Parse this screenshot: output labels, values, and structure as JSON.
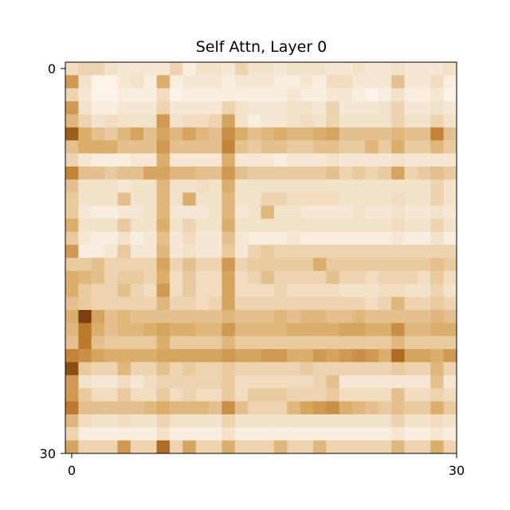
{
  "chart_data": {
    "type": "heatmap",
    "title": "Self Attn, Layer 0",
    "xlabel": "",
    "ylabel": "",
    "x_ticks": [
      "0",
      "30"
    ],
    "y_ticks": [
      "0",
      "30"
    ],
    "xlim": [
      0,
      30
    ],
    "ylim": [
      30,
      0
    ],
    "colormap": "white-to-brown",
    "color_low": "#fdf8f2",
    "color_high": "#6b3106",
    "grid": false,
    "rows": 30,
    "cols": 30,
    "values": [
      [
        0.25,
        0.3,
        0.3,
        0.2,
        0.15,
        0.15,
        0.15,
        0.15,
        0.3,
        0.1,
        0.2,
        0.2,
        0.15,
        0.3,
        0.2,
        0.2,
        0.15,
        0.2,
        0.2,
        0.2,
        0.15,
        0.15,
        0.2,
        0.15,
        0.15,
        0.2,
        0.15,
        0.15,
        0.15,
        0.2
      ],
      [
        0.6,
        0.2,
        0.05,
        0.05,
        0.15,
        0.2,
        0.1,
        0.5,
        0.1,
        0.15,
        0.15,
        0.15,
        0.1,
        0.15,
        0.15,
        0.15,
        0.1,
        0.1,
        0.15,
        0.1,
        0.25,
        0.25,
        0.15,
        0.15,
        0.15,
        0.4,
        0.15,
        0.15,
        0.25,
        0.1
      ],
      [
        0.3,
        0.15,
        0.05,
        0.05,
        0.1,
        0.1,
        0.1,
        0.25,
        0.05,
        0.1,
        0.1,
        0.1,
        0.1,
        0.1,
        0.1,
        0.1,
        0.1,
        0.15,
        0.1,
        0.1,
        0.15,
        0.15,
        0.1,
        0.05,
        0.1,
        0.2,
        0.1,
        0.1,
        0.15,
        0.05
      ],
      [
        0.6,
        0.2,
        0.1,
        0.1,
        0.15,
        0.15,
        0.15,
        0.3,
        0.15,
        0.15,
        0.15,
        0.15,
        0.3,
        0.2,
        0.15,
        0.15,
        0.15,
        0.2,
        0.2,
        0.15,
        0.3,
        0.15,
        0.15,
        0.15,
        0.2,
        0.3,
        0.15,
        0.15,
        0.2,
        0.15
      ],
      [
        0.45,
        0.3,
        0.2,
        0.25,
        0.2,
        0.2,
        0.2,
        0.6,
        0.2,
        0.25,
        0.25,
        0.3,
        0.55,
        0.2,
        0.1,
        0.15,
        0.15,
        0.2,
        0.25,
        0.2,
        0.3,
        0.2,
        0.2,
        0.2,
        0.2,
        0.3,
        0.2,
        0.2,
        0.3,
        0.2
      ],
      [
        0.85,
        0.5,
        0.4,
        0.35,
        0.45,
        0.55,
        0.4,
        0.55,
        0.45,
        0.55,
        0.45,
        0.4,
        0.65,
        0.5,
        0.4,
        0.45,
        0.5,
        0.45,
        0.45,
        0.5,
        0.55,
        0.4,
        0.4,
        0.4,
        0.4,
        0.45,
        0.4,
        0.4,
        0.7,
        0.4
      ],
      [
        0.4,
        0.5,
        0.5,
        0.5,
        0.4,
        0.4,
        0.4,
        0.6,
        0.4,
        0.4,
        0.4,
        0.4,
        0.7,
        0.4,
        0.35,
        0.4,
        0.4,
        0.35,
        0.35,
        0.4,
        0.4,
        0.35,
        0.35,
        0.45,
        0.35,
        0.5,
        0.35,
        0.35,
        0.45,
        0.35
      ],
      [
        0.3,
        0.15,
        0.1,
        0.1,
        0.1,
        0.15,
        0.15,
        0.5,
        0.15,
        0.15,
        0.15,
        0.15,
        0.5,
        0.15,
        0.15,
        0.15,
        0.1,
        0.15,
        0.15,
        0.15,
        0.2,
        0.15,
        0.15,
        0.15,
        0.15,
        0.2,
        0.15,
        0.15,
        0.15,
        0.15
      ],
      [
        0.7,
        0.4,
        0.4,
        0.35,
        0.4,
        0.4,
        0.55,
        0.55,
        0.45,
        0.45,
        0.4,
        0.4,
        0.6,
        0.4,
        0.35,
        0.35,
        0.35,
        0.35,
        0.35,
        0.35,
        0.4,
        0.3,
        0.35,
        0.3,
        0.35,
        0.55,
        0.3,
        0.35,
        0.4,
        0.35
      ],
      [
        0.4,
        0.2,
        0.2,
        0.2,
        0.15,
        0.2,
        0.2,
        0.45,
        0.2,
        0.2,
        0.25,
        0.2,
        0.5,
        0.2,
        0.2,
        0.2,
        0.2,
        0.2,
        0.2,
        0.2,
        0.2,
        0.2,
        0.2,
        0.2,
        0.2,
        0.2,
        0.2,
        0.2,
        0.3,
        0.2
      ],
      [
        0.35,
        0.2,
        0.2,
        0.2,
        0.4,
        0.2,
        0.2,
        0.45,
        0.2,
        0.5,
        0.2,
        0.2,
        0.45,
        0.2,
        0.2,
        0.3,
        0.3,
        0.25,
        0.25,
        0.25,
        0.25,
        0.2,
        0.2,
        0.2,
        0.2,
        0.25,
        0.2,
        0.2,
        0.3,
        0.2
      ],
      [
        0.35,
        0.15,
        0.1,
        0.1,
        0.15,
        0.15,
        0.2,
        0.45,
        0.15,
        0.15,
        0.15,
        0.2,
        0.45,
        0.15,
        0.2,
        0.45,
        0.2,
        0.2,
        0.15,
        0.15,
        0.15,
        0.15,
        0.2,
        0.15,
        0.15,
        0.2,
        0.15,
        0.15,
        0.2,
        0.15
      ],
      [
        0.5,
        0.2,
        0.2,
        0.2,
        0.35,
        0.2,
        0.2,
        0.5,
        0.2,
        0.3,
        0.2,
        0.2,
        0.5,
        0.2,
        0.2,
        0.2,
        0.2,
        0.2,
        0.2,
        0.2,
        0.2,
        0.2,
        0.2,
        0.2,
        0.2,
        0.25,
        0.2,
        0.2,
        0.3,
        0.2
      ],
      [
        0.35,
        0.15,
        0.1,
        0.1,
        0.2,
        0.1,
        0.15,
        0.4,
        0.15,
        0.25,
        0.15,
        0.15,
        0.4,
        0.15,
        0.1,
        0.1,
        0.1,
        0.15,
        0.1,
        0.1,
        0.1,
        0.1,
        0.1,
        0.1,
        0.1,
        0.15,
        0.1,
        0.1,
        0.2,
        0.1
      ],
      [
        0.6,
        0.1,
        0.1,
        0.15,
        0.35,
        0.15,
        0.15,
        0.45,
        0.15,
        0.2,
        0.15,
        0.15,
        0.35,
        0.15,
        0.3,
        0.35,
        0.3,
        0.3,
        0.3,
        0.3,
        0.3,
        0.3,
        0.3,
        0.3,
        0.3,
        0.3,
        0.3,
        0.3,
        0.3,
        0.3
      ],
      [
        0.35,
        0.35,
        0.4,
        0.3,
        0.3,
        0.3,
        0.3,
        0.55,
        0.3,
        0.4,
        0.3,
        0.3,
        0.6,
        0.3,
        0.35,
        0.35,
        0.35,
        0.35,
        0.35,
        0.5,
        0.35,
        0.35,
        0.35,
        0.35,
        0.35,
        0.35,
        0.35,
        0.35,
        0.4,
        0.35
      ],
      [
        0.5,
        0.45,
        0.4,
        0.3,
        0.35,
        0.35,
        0.3,
        0.5,
        0.25,
        0.35,
        0.25,
        0.25,
        0.55,
        0.25,
        0.3,
        0.4,
        0.3,
        0.3,
        0.3,
        0.3,
        0.4,
        0.3,
        0.3,
        0.25,
        0.3,
        0.3,
        0.3,
        0.25,
        0.35,
        0.25
      ],
      [
        0.5,
        0.35,
        0.3,
        0.3,
        0.4,
        0.3,
        0.25,
        0.6,
        0.25,
        0.35,
        0.25,
        0.25,
        0.55,
        0.25,
        0.25,
        0.25,
        0.3,
        0.25,
        0.25,
        0.25,
        0.25,
        0.2,
        0.2,
        0.2,
        0.25,
        0.25,
        0.2,
        0.2,
        0.3,
        0.2
      ],
      [
        0.4,
        0.35,
        0.3,
        0.3,
        0.3,
        0.3,
        0.3,
        0.45,
        0.3,
        0.3,
        0.25,
        0.3,
        0.55,
        0.3,
        0.3,
        0.3,
        0.3,
        0.3,
        0.3,
        0.3,
        0.3,
        0.3,
        0.3,
        0.25,
        0.3,
        0.45,
        0.3,
        0.3,
        0.35,
        0.3
      ],
      [
        0.5,
        0.95,
        0.55,
        0.4,
        0.45,
        0.4,
        0.4,
        0.4,
        0.4,
        0.4,
        0.4,
        0.4,
        0.45,
        0.4,
        0.4,
        0.4,
        0.45,
        0.4,
        0.45,
        0.45,
        0.4,
        0.4,
        0.45,
        0.4,
        0.4,
        0.4,
        0.4,
        0.4,
        0.45,
        0.4
      ],
      [
        0.45,
        0.75,
        0.5,
        0.4,
        0.45,
        0.45,
        0.5,
        0.55,
        0.5,
        0.5,
        0.45,
        0.45,
        0.6,
        0.45,
        0.45,
        0.45,
        0.45,
        0.5,
        0.5,
        0.5,
        0.5,
        0.55,
        0.55,
        0.5,
        0.5,
        0.65,
        0.45,
        0.45,
        0.5,
        0.5
      ],
      [
        0.4,
        0.75,
        0.4,
        0.35,
        0.35,
        0.35,
        0.35,
        0.5,
        0.35,
        0.35,
        0.35,
        0.35,
        0.45,
        0.35,
        0.35,
        0.35,
        0.35,
        0.35,
        0.35,
        0.35,
        0.35,
        0.35,
        0.35,
        0.35,
        0.35,
        0.45,
        0.35,
        0.35,
        0.35,
        0.35
      ],
      [
        0.7,
        0.65,
        0.55,
        0.5,
        0.5,
        0.5,
        0.5,
        0.55,
        0.55,
        0.55,
        0.55,
        0.55,
        0.6,
        0.55,
        0.55,
        0.6,
        0.6,
        0.5,
        0.5,
        0.6,
        0.55,
        0.6,
        0.65,
        0.6,
        0.5,
        0.8,
        0.55,
        0.55,
        0.5,
        0.6
      ],
      [
        0.9,
        0.35,
        0.3,
        0.3,
        0.45,
        0.3,
        0.3,
        0.4,
        0.3,
        0.35,
        0.3,
        0.3,
        0.35,
        0.3,
        0.3,
        0.3,
        0.3,
        0.3,
        0.35,
        0.3,
        0.3,
        0.3,
        0.3,
        0.3,
        0.3,
        0.35,
        0.3,
        0.3,
        0.45,
        0.3
      ],
      [
        0.6,
        0.2,
        0.15,
        0.15,
        0.25,
        0.15,
        0.25,
        0.3,
        0.3,
        0.3,
        0.3,
        0.3,
        0.35,
        0.25,
        0.25,
        0.25,
        0.25,
        0.25,
        0.25,
        0.3,
        0.4,
        0.15,
        0.15,
        0.15,
        0.15,
        0.15,
        0.15,
        0.15,
        0.4,
        0.15
      ],
      [
        0.6,
        0.35,
        0.25,
        0.25,
        0.35,
        0.25,
        0.25,
        0.35,
        0.25,
        0.3,
        0.25,
        0.25,
        0.35,
        0.25,
        0.35,
        0.35,
        0.35,
        0.3,
        0.3,
        0.3,
        0.35,
        0.25,
        0.25,
        0.25,
        0.25,
        0.4,
        0.25,
        0.25,
        0.3,
        0.25
      ],
      [
        0.75,
        0.4,
        0.4,
        0.4,
        0.4,
        0.4,
        0.45,
        0.5,
        0.45,
        0.45,
        0.45,
        0.4,
        0.65,
        0.4,
        0.3,
        0.3,
        0.3,
        0.45,
        0.55,
        0.6,
        0.65,
        0.5,
        0.45,
        0.4,
        0.35,
        0.4,
        0.35,
        0.35,
        0.5,
        0.35
      ],
      [
        0.45,
        0.25,
        0.2,
        0.2,
        0.25,
        0.2,
        0.2,
        0.3,
        0.2,
        0.2,
        0.2,
        0.2,
        0.3,
        0.2,
        0.2,
        0.2,
        0.2,
        0.2,
        0.2,
        0.2,
        0.2,
        0.2,
        0.2,
        0.2,
        0.2,
        0.3,
        0.2,
        0.2,
        0.25,
        0.2
      ],
      [
        0.3,
        0.1,
        0.1,
        0.1,
        0.1,
        0.1,
        0.1,
        0.2,
        0.1,
        0.1,
        0.1,
        0.1,
        0.2,
        0.1,
        0.1,
        0.1,
        0.1,
        0.1,
        0.1,
        0.1,
        0.1,
        0.1,
        0.1,
        0.1,
        0.1,
        0.15,
        0.1,
        0.1,
        0.15,
        0.1
      ],
      [
        0.55,
        0.3,
        0.3,
        0.3,
        0.6,
        0.3,
        0.3,
        0.8,
        0.3,
        0.55,
        0.3,
        0.3,
        0.5,
        0.3,
        0.3,
        0.3,
        0.45,
        0.3,
        0.3,
        0.45,
        0.3,
        0.3,
        0.3,
        0.3,
        0.3,
        0.45,
        0.3,
        0.3,
        0.5,
        0.3
      ]
    ]
  }
}
